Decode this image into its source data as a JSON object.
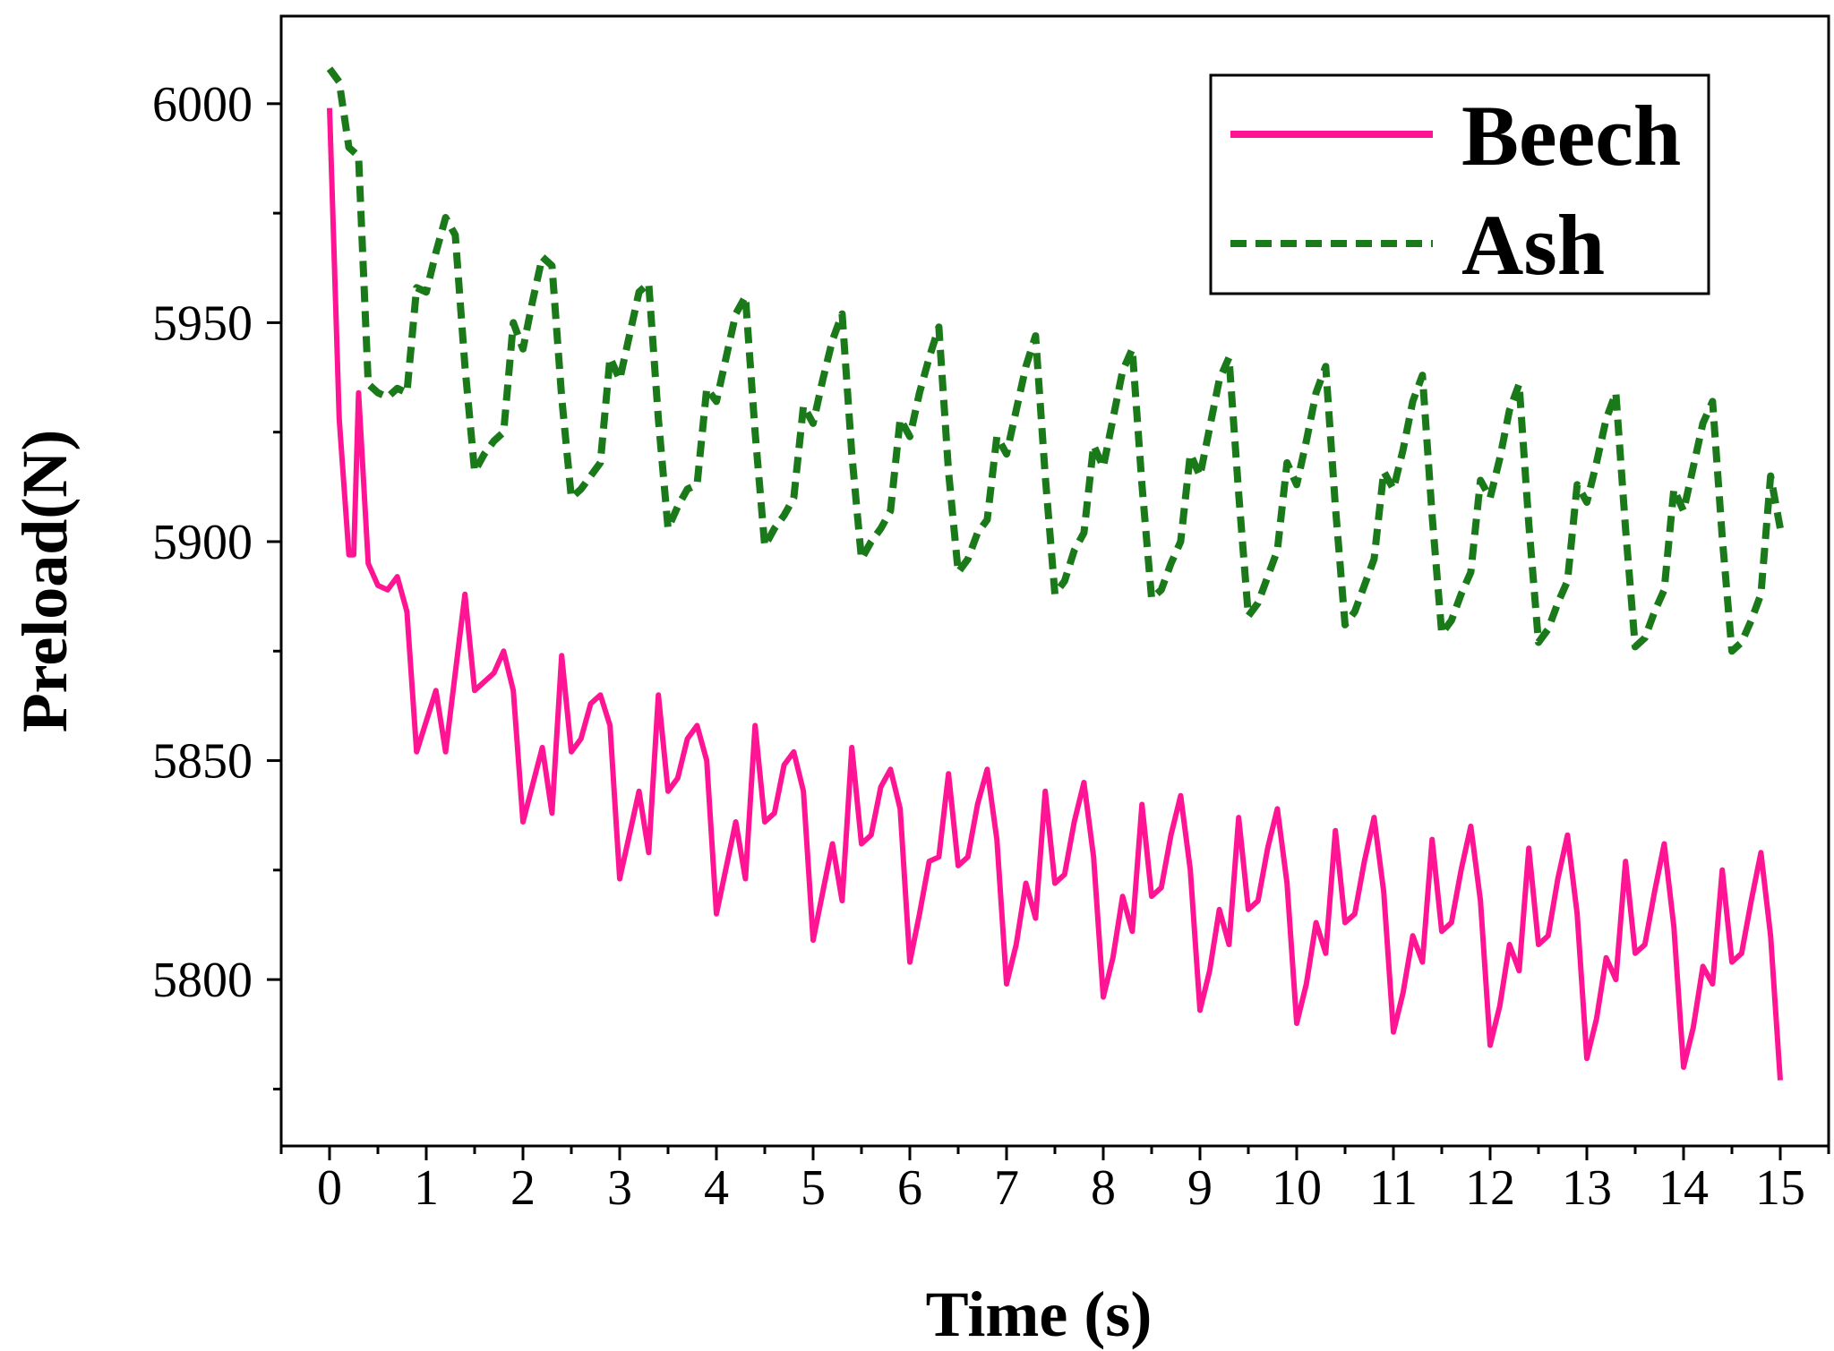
{
  "chart_data": {
    "type": "line",
    "title": "",
    "xlabel": "Time (s)",
    "ylabel": "Preload(N)",
    "xlim": [
      -0.5,
      15.5
    ],
    "ylim": [
      5762,
      6020
    ],
    "x_ticks": [
      0,
      1,
      2,
      3,
      4,
      5,
      6,
      7,
      8,
      9,
      10,
      11,
      12,
      13,
      14,
      15
    ],
    "y_ticks": [
      5800,
      5850,
      5900,
      5950,
      6000
    ],
    "grid": false,
    "legend_position": "top-right",
    "series": [
      {
        "name": "Beech",
        "color": "#ff1493",
        "style": "solid",
        "points": [
          [
            0,
            5999
          ],
          [
            0.1,
            5928
          ],
          [
            0.2,
            5897
          ],
          [
            0.25,
            5897
          ],
          [
            0.3,
            5934
          ],
          [
            0.4,
            5895
          ],
          [
            0.5,
            5890
          ],
          [
            0.6,
            5889
          ],
          [
            0.7,
            5892
          ],
          [
            0.8,
            5884
          ],
          [
            0.9,
            5852
          ],
          [
            1.1,
            5866
          ],
          [
            1.2,
            5852
          ],
          [
            1.4,
            5888
          ],
          [
            1.5,
            5866
          ],
          [
            1.7,
            5870
          ],
          [
            1.8,
            5875
          ],
          [
            1.9,
            5866
          ],
          [
            2.0,
            5836
          ],
          [
            2.2,
            5853
          ],
          [
            2.3,
            5838
          ],
          [
            2.4,
            5874
          ],
          [
            2.5,
            5852
          ],
          [
            2.6,
            5855
          ],
          [
            2.7,
            5863
          ],
          [
            2.8,
            5865
          ],
          [
            2.9,
            5858
          ],
          [
            3.0,
            5823
          ],
          [
            3.2,
            5843
          ],
          [
            3.3,
            5829
          ],
          [
            3.4,
            5865
          ],
          [
            3.5,
            5843
          ],
          [
            3.6,
            5846
          ],
          [
            3.7,
            5855
          ],
          [
            3.8,
            5858
          ],
          [
            3.9,
            5850
          ],
          [
            4.0,
            5815
          ],
          [
            4.2,
            5836
          ],
          [
            4.3,
            5823
          ],
          [
            4.4,
            5858
          ],
          [
            4.5,
            5836
          ],
          [
            4.6,
            5838
          ],
          [
            4.7,
            5849
          ],
          [
            4.8,
            5852
          ],
          [
            4.9,
            5843
          ],
          [
            5.0,
            5809
          ],
          [
            5.2,
            5831
          ],
          [
            5.3,
            5818
          ],
          [
            5.4,
            5853
          ],
          [
            5.5,
            5831
          ],
          [
            5.6,
            5833
          ],
          [
            5.7,
            5844
          ],
          [
            5.8,
            5848
          ],
          [
            5.9,
            5839
          ],
          [
            6.0,
            5804
          ],
          [
            6.1,
            5815
          ],
          [
            6.2,
            5827
          ],
          [
            6.3,
            5828
          ],
          [
            6.4,
            5847
          ],
          [
            6.5,
            5826
          ],
          [
            6.6,
            5828
          ],
          [
            6.7,
            5840
          ],
          [
            6.8,
            5848
          ],
          [
            6.9,
            5832
          ],
          [
            7.0,
            5799
          ],
          [
            7.1,
            5808
          ],
          [
            7.2,
            5822
          ],
          [
            7.3,
            5814
          ],
          [
            7.4,
            5843
          ],
          [
            7.5,
            5822
          ],
          [
            7.6,
            5824
          ],
          [
            7.7,
            5836
          ],
          [
            7.8,
            5845
          ],
          [
            7.9,
            5828
          ],
          [
            8.0,
            5796
          ],
          [
            8.1,
            5805
          ],
          [
            8.2,
            5819
          ],
          [
            8.3,
            5811
          ],
          [
            8.4,
            5840
          ],
          [
            8.5,
            5819
          ],
          [
            8.6,
            5821
          ],
          [
            8.7,
            5833
          ],
          [
            8.8,
            5842
          ],
          [
            8.9,
            5825
          ],
          [
            9.0,
            5793
          ],
          [
            9.1,
            5802
          ],
          [
            9.2,
            5816
          ],
          [
            9.3,
            5808
          ],
          [
            9.4,
            5837
          ],
          [
            9.5,
            5816
          ],
          [
            9.6,
            5818
          ],
          [
            9.7,
            5830
          ],
          [
            9.8,
            5839
          ],
          [
            9.9,
            5822
          ],
          [
            10.0,
            5790
          ],
          [
            10.1,
            5799
          ],
          [
            10.2,
            5813
          ],
          [
            10.3,
            5806
          ],
          [
            10.4,
            5834
          ],
          [
            10.5,
            5813
          ],
          [
            10.6,
            5815
          ],
          [
            10.7,
            5827
          ],
          [
            10.8,
            5837
          ],
          [
            10.9,
            5820
          ],
          [
            11.0,
            5788
          ],
          [
            11.1,
            5797
          ],
          [
            11.2,
            5810
          ],
          [
            11.3,
            5804
          ],
          [
            11.4,
            5832
          ],
          [
            11.5,
            5811
          ],
          [
            11.6,
            5813
          ],
          [
            11.7,
            5825
          ],
          [
            11.8,
            5835
          ],
          [
            11.9,
            5818
          ],
          [
            12.0,
            5785
          ],
          [
            12.1,
            5794
          ],
          [
            12.2,
            5808
          ],
          [
            12.3,
            5802
          ],
          [
            12.4,
            5830
          ],
          [
            12.5,
            5808
          ],
          [
            12.6,
            5810
          ],
          [
            12.7,
            5823
          ],
          [
            12.8,
            5833
          ],
          [
            12.9,
            5815
          ],
          [
            13.0,
            5782
          ],
          [
            13.1,
            5791
          ],
          [
            13.2,
            5805
          ],
          [
            13.3,
            5800
          ],
          [
            13.4,
            5827
          ],
          [
            13.5,
            5806
          ],
          [
            13.6,
            5808
          ],
          [
            13.7,
            5820
          ],
          [
            13.8,
            5831
          ],
          [
            13.9,
            5812
          ],
          [
            14.0,
            5780
          ],
          [
            14.1,
            5789
          ],
          [
            14.2,
            5803
          ],
          [
            14.3,
            5799
          ],
          [
            14.4,
            5825
          ],
          [
            14.5,
            5804
          ],
          [
            14.6,
            5806
          ],
          [
            14.7,
            5818
          ],
          [
            14.8,
            5829
          ],
          [
            14.9,
            5810
          ],
          [
            15.0,
            5777
          ]
        ]
      },
      {
        "name": "Ash",
        "color": "#1a7a1a",
        "style": "dashed",
        "points": [
          [
            0,
            6008
          ],
          [
            0.1,
            6005
          ],
          [
            0.2,
            5990
          ],
          [
            0.3,
            5988
          ],
          [
            0.4,
            5936
          ],
          [
            0.5,
            5934
          ],
          [
            0.6,
            5933
          ],
          [
            0.7,
            5935
          ],
          [
            0.8,
            5934
          ],
          [
            0.9,
            5958
          ],
          [
            1.0,
            5957
          ],
          [
            1.1,
            5966
          ],
          [
            1.2,
            5974
          ],
          [
            1.3,
            5970
          ],
          [
            1.4,
            5940
          ],
          [
            1.5,
            5916
          ],
          [
            1.6,
            5920
          ],
          [
            1.7,
            5923
          ],
          [
            1.8,
            5925
          ],
          [
            1.9,
            5950
          ],
          [
            2.0,
            5944
          ],
          [
            2.1,
            5955
          ],
          [
            2.2,
            5965
          ],
          [
            2.3,
            5963
          ],
          [
            2.4,
            5933
          ],
          [
            2.5,
            5910
          ],
          [
            2.6,
            5912
          ],
          [
            2.7,
            5915
          ],
          [
            2.8,
            5918
          ],
          [
            2.9,
            5942
          ],
          [
            3.0,
            5937
          ],
          [
            3.1,
            5947
          ],
          [
            3.2,
            5957
          ],
          [
            3.3,
            5959
          ],
          [
            3.4,
            5928
          ],
          [
            3.5,
            5903
          ],
          [
            3.6,
            5908
          ],
          [
            3.7,
            5912
          ],
          [
            3.8,
            5913
          ],
          [
            3.9,
            5935
          ],
          [
            4.0,
            5932
          ],
          [
            4.1,
            5942
          ],
          [
            4.2,
            5952
          ],
          [
            4.3,
            5956
          ],
          [
            4.4,
            5925
          ],
          [
            4.5,
            5899
          ],
          [
            4.6,
            5903
          ],
          [
            4.7,
            5906
          ],
          [
            4.8,
            5910
          ],
          [
            4.9,
            5931
          ],
          [
            5.0,
            5927
          ],
          [
            5.1,
            5937
          ],
          [
            5.2,
            5946
          ],
          [
            5.3,
            5952
          ],
          [
            5.4,
            5920
          ],
          [
            5.5,
            5896
          ],
          [
            5.6,
            5900
          ],
          [
            5.7,
            5903
          ],
          [
            5.8,
            5907
          ],
          [
            5.9,
            5928
          ],
          [
            6.0,
            5924
          ],
          [
            6.1,
            5934
          ],
          [
            6.2,
            5942
          ],
          [
            6.3,
            5949
          ],
          [
            6.4,
            5916
          ],
          [
            6.5,
            5893
          ],
          [
            6.6,
            5896
          ],
          [
            6.7,
            5902
          ],
          [
            6.8,
            5905
          ],
          [
            6.9,
            5924
          ],
          [
            7.0,
            5920
          ],
          [
            7.1,
            5930
          ],
          [
            7.2,
            5940
          ],
          [
            7.3,
            5947
          ],
          [
            7.4,
            5915
          ],
          [
            7.5,
            5888
          ],
          [
            7.6,
            5891
          ],
          [
            7.7,
            5898
          ],
          [
            7.8,
            5902
          ],
          [
            7.9,
            5922
          ],
          [
            8.0,
            5917
          ],
          [
            8.1,
            5928
          ],
          [
            8.2,
            5939
          ],
          [
            8.3,
            5944
          ],
          [
            8.4,
            5913
          ],
          [
            8.5,
            5887
          ],
          [
            8.6,
            5889
          ],
          [
            8.7,
            5895
          ],
          [
            8.8,
            5900
          ],
          [
            8.9,
            5920
          ],
          [
            9.0,
            5915
          ],
          [
            9.1,
            5926
          ],
          [
            9.2,
            5937
          ],
          [
            9.3,
            5942
          ],
          [
            9.4,
            5911
          ],
          [
            9.5,
            5883
          ],
          [
            9.6,
            5886
          ],
          [
            9.7,
            5892
          ],
          [
            9.8,
            5898
          ],
          [
            9.9,
            5918
          ],
          [
            10.0,
            5913
          ],
          [
            10.1,
            5923
          ],
          [
            10.2,
            5934
          ],
          [
            10.3,
            5940
          ],
          [
            10.4,
            5908
          ],
          [
            10.5,
            5881
          ],
          [
            10.6,
            5884
          ],
          [
            10.7,
            5890
          ],
          [
            10.8,
            5896
          ],
          [
            10.9,
            5916
          ],
          [
            11.0,
            5912
          ],
          [
            11.1,
            5921
          ],
          [
            11.2,
            5932
          ],
          [
            11.3,
            5938
          ],
          [
            11.4,
            5906
          ],
          [
            11.5,
            5879
          ],
          [
            11.6,
            5882
          ],
          [
            11.7,
            5888
          ],
          [
            11.8,
            5893
          ],
          [
            11.9,
            5914
          ],
          [
            12.0,
            5910
          ],
          [
            12.1,
            5919
          ],
          [
            12.2,
            5930
          ],
          [
            12.3,
            5936
          ],
          [
            12.4,
            5904
          ],
          [
            12.5,
            5877
          ],
          [
            12.6,
            5880
          ],
          [
            12.7,
            5886
          ],
          [
            12.8,
            5891
          ],
          [
            12.9,
            5913
          ],
          [
            13.0,
            5909
          ],
          [
            13.1,
            5918
          ],
          [
            13.2,
            5928
          ],
          [
            13.3,
            5934
          ],
          [
            13.4,
            5903
          ],
          [
            13.5,
            5876
          ],
          [
            13.6,
            5878
          ],
          [
            13.7,
            5884
          ],
          [
            13.8,
            5889
          ],
          [
            13.9,
            5912
          ],
          [
            14.0,
            5907
          ],
          [
            14.1,
            5917
          ],
          [
            14.2,
            5927
          ],
          [
            14.3,
            5932
          ],
          [
            14.4,
            5901
          ],
          [
            14.5,
            5875
          ],
          [
            14.6,
            5877
          ],
          [
            14.7,
            5882
          ],
          [
            14.8,
            5888
          ],
          [
            14.9,
            5915
          ],
          [
            15.0,
            5903
          ]
        ]
      }
    ]
  }
}
